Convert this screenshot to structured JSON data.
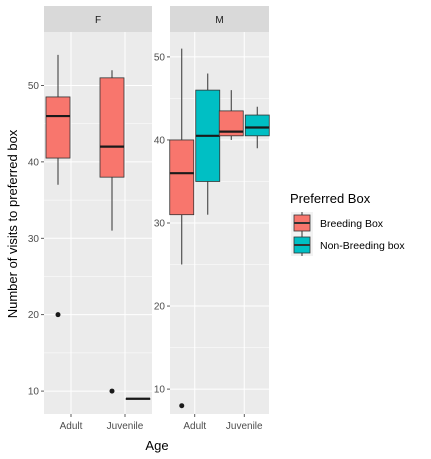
{
  "chart_data": {
    "type": "boxplot",
    "xlabel": "Age",
    "ylabel": "Number of visits to preferred box",
    "categories": [
      "Adult",
      "Juvenile"
    ],
    "legend": {
      "title": "Preferred Box",
      "placement": "right",
      "entries": [
        {
          "name": "Breeding Box",
          "color": "#F8766D"
        },
        {
          "name": "Non-Breeding box",
          "color": "#00BFC4"
        }
      ]
    },
    "grid": true,
    "panels": [
      {
        "strip": "F",
        "ylim": [
          7,
          57
        ],
        "yticks": [
          10,
          20,
          30,
          40,
          50
        ],
        "boxes": [
          {
            "category": "Adult",
            "series": "Breeding Box",
            "min": 37,
            "q1": 40.5,
            "median": 46,
            "q3": 48.5,
            "max": 54,
            "outliers": [
              20
            ]
          },
          {
            "category": "Juvenile",
            "series": "Breeding Box",
            "min": 31,
            "q1": 38,
            "median": 42,
            "q3": 51,
            "max": 52,
            "outliers": [
              10
            ]
          },
          {
            "category": "Juvenile",
            "series": "Non-Breeding box",
            "min": 9,
            "q1": 9,
            "median": 9,
            "q3": 9,
            "max": 9,
            "outliers": []
          }
        ]
      },
      {
        "strip": "M",
        "ylim": [
          7,
          53
        ],
        "yticks": [
          10,
          20,
          30,
          40,
          50
        ],
        "boxes": [
          {
            "category": "Adult",
            "series": "Breeding Box",
            "min": 25,
            "q1": 31,
            "median": 36,
            "q3": 40,
            "max": 51,
            "outliers": [
              8
            ]
          },
          {
            "category": "Adult",
            "series": "Non-Breeding box",
            "min": 31,
            "q1": 35,
            "median": 40.5,
            "q3": 46,
            "max": 48,
            "outliers": []
          },
          {
            "category": "Juvenile",
            "series": "Breeding Box",
            "min": 40,
            "q1": 40.5,
            "median": 41,
            "q3": 43.5,
            "max": 46,
            "outliers": []
          },
          {
            "category": "Juvenile",
            "series": "Non-Breeding box",
            "min": 39,
            "q1": 40.5,
            "median": 41.5,
            "q3": 43,
            "max": 44,
            "outliers": []
          }
        ]
      }
    ]
  }
}
